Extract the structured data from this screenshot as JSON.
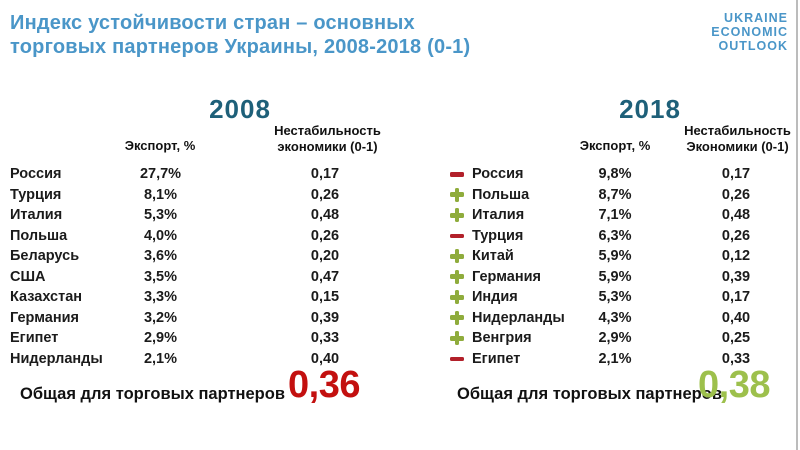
{
  "colors": {
    "title_blue": "#4a96c8",
    "year_teal": "#1e6079",
    "total_red": "#c3100f",
    "total_green": "#9dc04c",
    "plus_green": "#8fac3c",
    "minus_red": "#b2202a"
  },
  "header": {
    "title_line1": "Индекс устойчивости стран – основных",
    "title_line2": "торговых партнеров Украины, 2008-2018 (0-1)",
    "logo_line1": "UKRAINE",
    "logo_line2": "ECONOMIC",
    "logo_line3": "OUTLOOK"
  },
  "tables": [
    {
      "year": "2008",
      "columns": {
        "export": "Экспорт, %",
        "instability": "Нестабильность экономики (0-1)"
      },
      "rows": [
        {
          "country": "Россия",
          "export": "27,7%",
          "instability": "0,17"
        },
        {
          "country": "Турция",
          "export": "8,1%",
          "instability": "0,26"
        },
        {
          "country": "Италия",
          "export": "5,3%",
          "instability": "0,48"
        },
        {
          "country": "Польша",
          "export": "4,0%",
          "instability": "0,26"
        },
        {
          "country": "Беларусь",
          "export": "3,6%",
          "instability": "0,20"
        },
        {
          "country": "США",
          "export": "3,5%",
          "instability": "0,47"
        },
        {
          "country": "Казахстан",
          "export": "3,3%",
          "instability": "0,15"
        },
        {
          "country": "Германия",
          "export": "3,2%",
          "instability": "0,39"
        },
        {
          "country": "Египет",
          "export": "2,9%",
          "instability": "0,33"
        },
        {
          "country": "Нидерланды",
          "export": "2,1%",
          "instability": "0,40"
        }
      ],
      "total_label": "Общая для торговых партнеров",
      "total_value": "0,36"
    },
    {
      "year": "2018",
      "columns": {
        "export": "Экспорт, %",
        "instability": "Нестабильность Экономики (0-1)"
      },
      "rows": [
        {
          "trend": "minus",
          "country": "Россия",
          "export": "9,8%",
          "instability": "0,17"
        },
        {
          "trend": "plus",
          "country": "Польша",
          "export": "8,7%",
          "instability": "0,26"
        },
        {
          "trend": "plus",
          "country": "Италия",
          "export": "7,1%",
          "instability": "0,48"
        },
        {
          "trend": "minus",
          "country": "Турция",
          "export": "6,3%",
          "instability": "0,26"
        },
        {
          "trend": "plus",
          "country": "Китай",
          "export": "5,9%",
          "instability": "0,12"
        },
        {
          "trend": "plus",
          "country": "Германия",
          "export": "5,9%",
          "instability": "0,39"
        },
        {
          "trend": "plus",
          "country": "Индия",
          "export": "5,3%",
          "instability": "0,17"
        },
        {
          "trend": "plus",
          "country": "Нидерланды",
          "export": "4,3%",
          "instability": "0,40"
        },
        {
          "trend": "plus",
          "country": "Венгрия",
          "export": "2,9%",
          "instability": "0,25"
        },
        {
          "trend": "minus",
          "country": "Египет",
          "export": "2,1%",
          "instability": "0,33"
        }
      ],
      "total_label": "Общая для торговых партнеров",
      "total_value": "0,38"
    }
  ]
}
